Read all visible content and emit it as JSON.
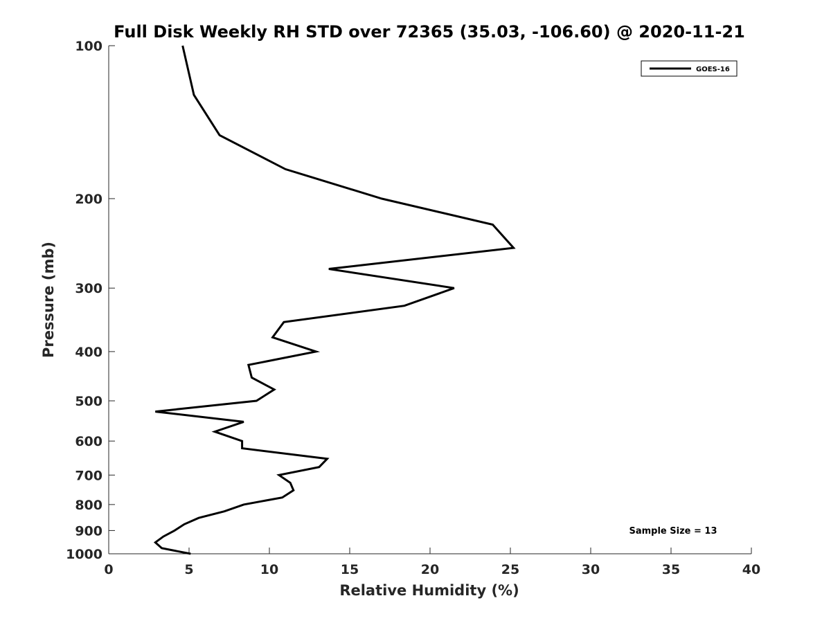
{
  "chart_data": {
    "type": "line",
    "title": "Full Disk Weekly RH STD over 72365 (35.03, -106.60) @ 2020-11-21",
    "xlabel": "Relative Humidity (%)",
    "ylabel": "Pressure (mb)",
    "xlim": [
      0,
      40
    ],
    "ylim": [
      100,
      1000
    ],
    "y_scale": "log",
    "y_direction": "reversed",
    "x_ticks": [
      0,
      5,
      10,
      15,
      20,
      25,
      30,
      35,
      40
    ],
    "y_ticks": [
      100,
      200,
      300,
      400,
      500,
      600,
      700,
      800,
      900,
      1000
    ],
    "grid": false,
    "legend_position": "top-right",
    "line_color": "#000000",
    "series": [
      {
        "name": "GOES-16",
        "points": [
          {
            "x": 4.6,
            "y": 100
          },
          {
            "x": 5.3,
            "y": 125
          },
          {
            "x": 6.9,
            "y": 150
          },
          {
            "x": 11.0,
            "y": 175
          },
          {
            "x": 17.0,
            "y": 200
          },
          {
            "x": 23.9,
            "y": 225
          },
          {
            "x": 25.2,
            "y": 250
          },
          {
            "x": 13.7,
            "y": 275
          },
          {
            "x": 21.5,
            "y": 300
          },
          {
            "x": 18.4,
            "y": 325
          },
          {
            "x": 10.9,
            "y": 350
          },
          {
            "x": 10.2,
            "y": 375
          },
          {
            "x": 12.9,
            "y": 400
          },
          {
            "x": 8.7,
            "y": 425
          },
          {
            "x": 8.9,
            "y": 450
          },
          {
            "x": 10.3,
            "y": 475
          },
          {
            "x": 9.2,
            "y": 500
          },
          {
            "x": 2.9,
            "y": 525
          },
          {
            "x": 8.4,
            "y": 550
          },
          {
            "x": 6.6,
            "y": 575
          },
          {
            "x": 8.3,
            "y": 600
          },
          {
            "x": 8.3,
            "y": 620
          },
          {
            "x": 13.6,
            "y": 650
          },
          {
            "x": 13.1,
            "y": 675
          },
          {
            "x": 10.6,
            "y": 700
          },
          {
            "x": 11.3,
            "y": 725
          },
          {
            "x": 11.5,
            "y": 750
          },
          {
            "x": 10.8,
            "y": 775
          },
          {
            "x": 8.4,
            "y": 800
          },
          {
            "x": 7.2,
            "y": 825
          },
          {
            "x": 5.6,
            "y": 850
          },
          {
            "x": 4.7,
            "y": 875
          },
          {
            "x": 4.1,
            "y": 900
          },
          {
            "x": 3.4,
            "y": 925
          },
          {
            "x": 2.9,
            "y": 950
          },
          {
            "x": 3.3,
            "y": 975
          },
          {
            "x": 5.1,
            "y": 1000
          }
        ]
      }
    ],
    "annotations": [
      {
        "text": "Sample Size = 13",
        "position": "bottom-right"
      }
    ]
  }
}
